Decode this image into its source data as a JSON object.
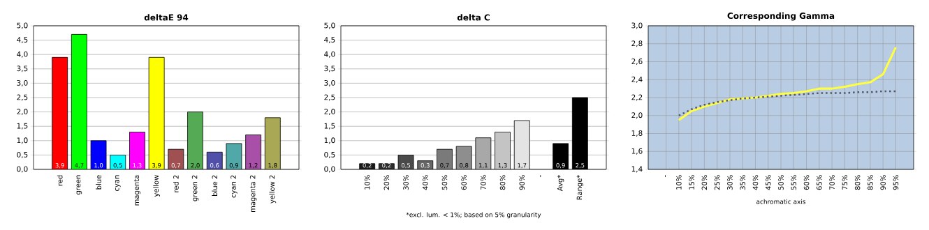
{
  "chart_data": [
    {
      "type": "bar",
      "title": "deltaE 94",
      "categories": [
        "red",
        "green",
        "blue",
        "cyan",
        "magenta",
        "yellow",
        "red 2",
        "green 2",
        "blue 2",
        "cyan 2",
        "magenta 2",
        "yellow 2"
      ],
      "values": [
        3.9,
        4.7,
        1.0,
        0.5,
        1.3,
        3.9,
        0.7,
        2.0,
        0.6,
        0.9,
        1.2,
        1.8
      ],
      "value_labels": [
        "3,9",
        "4,7",
        "1,0",
        "0,5",
        "1,3",
        "3,9",
        "0,7",
        "2,0",
        "0,6",
        "0,9",
        "1,2",
        "1,8"
      ],
      "colors": [
        "#ff0000",
        "#00ff00",
        "#0000ff",
        "#00ffff",
        "#ff00ff",
        "#ffff00",
        "#a05050",
        "#55aa55",
        "#5050aa",
        "#50a8a8",
        "#a850a8",
        "#a8a855"
      ],
      "ylim": [
        0,
        5
      ],
      "yticks": [
        {
          "value": 0,
          "label": "0,0"
        },
        {
          "value": 0.5,
          "label": "0,5"
        },
        {
          "value": 1,
          "label": "1,0"
        },
        {
          "value": 1.5,
          "label": "1,5"
        },
        {
          "value": 2,
          "label": "2,0"
        },
        {
          "value": 2.5,
          "label": "2,5"
        },
        {
          "value": 3,
          "label": "3,0"
        },
        {
          "value": 3.5,
          "label": "3,5"
        },
        {
          "value": 4,
          "label": "4,0"
        },
        {
          "value": 4.5,
          "label": "4,5"
        },
        {
          "value": 5,
          "label": "5,0"
        }
      ],
      "grid": "y"
    },
    {
      "type": "bar",
      "title": "delta C",
      "categories": [
        "10%",
        "20%",
        "30%",
        "40%",
        "50%",
        "60%",
        "70%",
        "80%",
        "90%",
        "-",
        "Avg*",
        "Range*"
      ],
      "values": [
        0.2,
        0.2,
        0.5,
        0.3,
        0.7,
        0.8,
        1.1,
        1.3,
        1.7,
        null,
        0.9,
        2.5
      ],
      "value_labels": [
        "0,2",
        "0,2",
        "0,5",
        "0,3",
        "0,7",
        "0,8",
        "1,1",
        "1,3",
        "1,7",
        null,
        "0,9",
        "2,5"
      ],
      "colors": [
        "#1a1a1a",
        "#2e2e2e",
        "#4a4a4a",
        "#666666",
        "#7a7a7a",
        "#8e8e8e",
        "#a8a8a8",
        "#c4c4c4",
        "#e4e4e4",
        "#ffffff",
        "#000000",
        "#000000"
      ],
      "ylim": [
        0,
        5
      ],
      "yticks": [
        {
          "value": 0,
          "label": "0,0"
        },
        {
          "value": 0.5,
          "label": "0,5"
        },
        {
          "value": 1,
          "label": "1,0"
        },
        {
          "value": 1.5,
          "label": "1,5"
        },
        {
          "value": 2,
          "label": "2,0"
        },
        {
          "value": 2.5,
          "label": "2,5"
        },
        {
          "value": 3,
          "label": "3,0"
        },
        {
          "value": 3.5,
          "label": "3,5"
        },
        {
          "value": 4,
          "label": "4,0"
        },
        {
          "value": 4.5,
          "label": "4,5"
        },
        {
          "value": 5,
          "label": "5,0"
        }
      ],
      "grid": "y",
      "annotations": [
        "*excl. lum. < 1%; based on 5% granularity"
      ]
    },
    {
      "type": "line",
      "title": "Corresponding Gamma",
      "xlabel": "achromatic axis",
      "categories": [
        "-",
        "10%",
        "15%",
        "20%",
        "25%",
        "30%",
        "35%",
        "40%",
        "45%",
        "50%",
        "55%",
        "60%",
        "65%",
        "70%",
        "75%",
        "80%",
        "85%",
        "90%",
        "95%"
      ],
      "series": [
        {
          "color": "#ffff40",
          "line_style": "solid",
          "values": [
            null,
            1.95,
            2.05,
            2.1,
            2.14,
            2.18,
            2.19,
            2.2,
            2.22,
            2.24,
            2.25,
            2.27,
            2.3,
            2.3,
            2.32,
            2.35,
            2.37,
            2.46,
            2.76
          ]
        },
        {
          "color": "#555566",
          "line_style": "dotted",
          "values": [
            null,
            2.0,
            2.07,
            2.12,
            2.15,
            2.17,
            2.19,
            2.2,
            2.21,
            2.22,
            2.23,
            2.24,
            2.25,
            2.25,
            2.25,
            2.26,
            2.26,
            2.27,
            2.27
          ]
        }
      ],
      "ylim": [
        1.4,
        3.0
      ],
      "yticks": [
        {
          "value": 1.4,
          "label": "1,4"
        },
        {
          "value": 1.6,
          "label": "1,6"
        },
        {
          "value": 1.8,
          "label": "1,8"
        },
        {
          "value": 2.0,
          "label": "2,0"
        },
        {
          "value": 2.2,
          "label": "2,2"
        },
        {
          "value": 2.4,
          "label": "2,4"
        },
        {
          "value": 2.6,
          "label": "2,6"
        },
        {
          "value": 2.8,
          "label": "2,8"
        },
        {
          "value": 3.0,
          "label": "3,0"
        }
      ],
      "grid": true,
      "marker": "none"
    }
  ]
}
